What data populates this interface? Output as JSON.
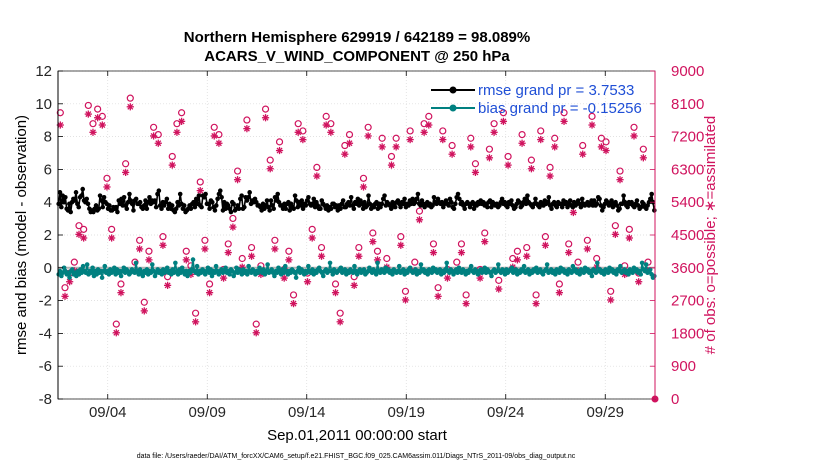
{
  "chart_data": {
    "type": "line",
    "title": [
      "Northern Hemisphere 629919 / 642189 = 98.089%",
      "ACARS_V_WIND_COMPONENT @ 250 hPa"
    ],
    "xlabel": "Sep.01,2011 00:00:00 start",
    "ylabel": "rmse and bias (model - observation)",
    "ylabel_right": "# of obs: o=possible; ∗=assimilated",
    "footer": "data file: /Users/raeder/DAI/ATM_forcXX/CAM6_setup/f.e21.FHIST_BGC.f09_025.CAM6assim.011/Diags_NTrS_2011-09/obs_diag_output.nc",
    "xlim_days": [
      1.5,
      31.5
    ],
    "xticks": [
      4,
      9,
      14,
      19,
      24,
      29
    ],
    "xtick_labels": [
      "09/04",
      "09/09",
      "09/14",
      "09/19",
      "09/24",
      "09/29"
    ],
    "ylim": [
      -8,
      12
    ],
    "yticks": [
      -8,
      -6,
      -4,
      -2,
      0,
      2,
      4,
      6,
      8,
      10,
      12
    ],
    "ylim_right": [
      0,
      9000
    ],
    "yticks_right": [
      0,
      900,
      1800,
      2700,
      3600,
      4500,
      5400,
      6300,
      7200,
      8100,
      9000
    ],
    "colors": {
      "rmse": "#000000",
      "bias": "#008080",
      "obs": "#d0135e",
      "zero": "#b3b3b3"
    },
    "series": [
      {
        "name": "rmse",
        "legend": "rmse grand pr = 3.7533",
        "values": [
          3.9,
          4.6,
          3.7,
          4.4,
          4.0,
          4.3,
          3.6,
          3.5,
          3.9,
          3.4,
          4.0,
          4.2,
          4.1,
          4.6,
          3.9,
          3.7,
          4.3,
          4.4,
          4.8,
          4.1,
          4.0,
          4.2,
          3.9,
          3.6,
          3.4,
          3.5,
          3.4,
          3.6,
          3.8,
          3.5,
          3.6,
          4.4,
          4.1,
          3.7,
          4.3,
          4.0,
          3.9,
          3.6,
          3.8,
          3.5,
          3.5,
          3.7,
          3.6,
          3.7,
          3.4,
          4.1,
          3.9,
          4.2,
          3.8,
          4.3,
          3.8,
          3.6,
          4.0,
          4.5,
          4.1,
          3.9,
          3.5,
          4.1,
          4.2,
          3.9,
          3.9,
          4.0,
          3.7,
          3.6,
          3.8,
          4.1,
          3.6,
          4.0,
          4.3,
          3.9,
          4.1,
          4.0,
          4.1,
          3.7,
          4.5,
          4.7,
          3.8,
          3.6,
          4.0,
          3.8,
          4.0,
          4.2,
          3.6,
          3.9,
          3.6,
          3.8,
          3.5,
          3.4,
          3.6,
          4.0,
          3.8,
          4.5,
          3.9,
          3.6,
          3.8,
          3.4,
          3.5,
          3.6,
          3.8,
          3.6,
          3.9,
          4.0,
          3.7,
          4.2,
          3.9,
          4.4,
          3.8,
          3.7,
          4.4,
          4.3,
          4.5,
          3.9,
          3.9,
          3.6,
          4.1,
          4.0,
          3.7,
          3.5,
          3.8,
          4.2,
          4.5,
          4.7,
          4.3,
          3.5,
          4.0,
          3.6,
          3.9,
          3.8,
          3.6,
          3.4,
          4.0,
          3.9,
          3.5,
          3.6,
          3.8,
          3.6,
          4.2,
          4.4,
          3.6,
          3.7,
          4.3,
          4.1,
          4.3,
          4.6,
          3.9,
          4.1,
          4.0,
          4.2,
          4.0,
          3.8,
          3.8,
          3.7,
          3.5,
          3.9,
          3.6,
          3.8,
          4.1,
          3.7,
          3.5,
          4.1,
          3.8,
          3.6,
          4.3,
          4.1,
          4.5,
          4.0,
          3.8,
          3.8,
          3.6,
          3.9,
          3.6,
          3.9,
          4.0,
          3.5,
          3.9,
          3.7,
          3.6,
          4.4,
          4.1,
          3.7,
          4.0,
          3.8,
          4.1,
          3.6,
          3.9,
          3.8,
          4.1,
          4.3,
          3.9,
          3.8,
          3.9,
          4.2,
          3.7,
          4.0,
          3.8,
          3.6,
          3.6,
          4.1,
          3.9,
          3.8,
          3.6,
          3.8,
          3.5,
          3.7,
          3.6,
          3.9,
          3.9,
          3.7,
          3.8,
          3.5,
          3.8,
          3.6,
          3.9,
          4.1,
          3.7,
          3.7,
          3.9,
          4.0,
          3.8,
          4.3,
          3.8,
          3.6,
          4.0,
          3.9,
          4.2,
          3.8,
          4.1,
          3.9,
          3.6,
          4.0,
          3.7,
          3.8,
          4.4,
          3.9,
          3.6,
          3.8,
          3.7,
          3.9,
          4.0,
          3.6,
          3.9,
          3.7,
          3.9,
          4.2,
          4.4,
          3.8,
          4.0,
          3.9,
          3.8,
          3.6,
          4.0,
          3.8,
          3.7,
          4.0,
          4.1,
          3.9,
          3.7,
          4.0,
          3.9,
          4.2,
          3.7,
          3.9,
          3.8,
          4.1,
          3.9,
          4.2,
          3.9,
          4.0,
          4.2,
          4.5,
          3.9,
          3.8,
          4.1,
          3.9,
          3.7,
          3.9,
          4.0,
          3.8,
          3.9,
          3.7,
          3.8,
          4.3,
          4.0,
          3.9,
          4.2,
          4.0,
          3.9,
          4.0,
          3.7,
          3.9,
          4.1,
          3.9,
          3.8,
          4.2,
          4.0,
          3.7,
          3.6,
          3.9,
          4.3,
          4.5,
          4.2,
          3.9,
          4.0,
          3.8,
          3.6,
          3.9,
          4.0,
          3.9,
          3.7,
          3.9,
          4.0,
          3.6,
          3.9,
          3.8,
          4.0,
          3.9,
          4.1,
          3.9,
          4.0,
          3.8,
          3.9,
          3.7,
          4.0,
          4.1,
          3.7,
          4.0,
          3.9,
          3.8,
          3.9,
          3.7,
          3.8,
          4.0,
          4.2,
          3.9,
          4.0,
          3.8,
          3.7,
          4.0,
          3.9,
          4.1,
          3.8,
          3.6,
          3.7,
          3.9,
          4.1,
          4.0,
          3.7,
          3.8,
          4.0,
          4.2,
          3.9,
          4.4,
          4.0,
          3.9,
          3.8,
          3.7,
          3.9,
          4.2,
          3.9,
          3.8,
          3.7,
          4.0,
          3.9,
          3.8,
          4.1,
          3.9,
          4.0,
          4.3,
          3.8,
          3.6,
          3.9,
          4.0,
          3.8,
          3.7,
          4.0,
          3.9,
          3.9,
          3.7,
          4.1,
          3.9,
          4.0,
          3.7,
          3.9,
          4.1,
          3.8,
          3.7,
          4.0,
          3.8,
          3.9,
          4.1,
          3.9,
          3.7,
          4.2,
          3.9,
          3.8,
          3.9,
          4.0,
          3.8,
          3.9,
          4.1,
          3.8,
          4.1,
          3.8,
          3.9,
          4.3,
          4.2,
          3.8,
          3.5,
          3.7,
          3.9,
          4.1,
          4.0,
          3.8,
          3.9,
          4.1,
          3.7,
          3.9,
          4.0,
          3.8,
          3.5,
          3.6,
          3.9,
          3.9,
          4.4,
          4.0,
          3.8,
          3.7,
          4.0,
          3.9,
          4.0,
          3.8,
          3.7,
          3.9,
          4.1,
          3.8,
          3.6,
          3.7,
          4.0,
          3.9,
          3.7,
          3.6,
          3.8,
          4.0,
          4.2,
          4.5,
          4.0,
          3.5
        ]
      },
      {
        "name": "bias",
        "legend": "bias grand pr = -0.15256",
        "values": [
          -0.4,
          -0.2,
          -0.5,
          -0.3,
          0.0,
          -0.2,
          -0.4,
          -0.3,
          -0.6,
          -0.2,
          -0.1,
          -0.4,
          -0.3,
          -0.5,
          -0.2,
          -0.4,
          -0.1,
          -0.3,
          0.1,
          -0.2,
          -0.3,
          0.2,
          -0.4,
          -0.2,
          -0.3,
          0.0,
          -0.5,
          -0.2,
          -0.4,
          -0.1,
          -0.3,
          -0.2,
          -0.6,
          -0.2,
          0.1,
          -0.3,
          -0.2,
          -0.4,
          -0.1,
          -0.3,
          -0.2,
          0.0,
          -0.4,
          -0.1,
          -0.3,
          -0.2,
          -0.5,
          -0.2,
          0.0,
          -0.3,
          -0.1,
          -0.2,
          -0.4,
          -0.3,
          -0.1,
          -0.2,
          -0.3,
          0.3,
          -0.2,
          -0.4,
          -0.1,
          -0.3,
          -0.5,
          -0.2,
          -0.3,
          -0.1,
          -0.4,
          -0.2,
          -0.3,
          0.2,
          -0.2,
          -0.5,
          -0.3,
          -0.1,
          -0.3,
          -0.2,
          -0.4,
          -0.1,
          -0.3,
          -0.2,
          0.0,
          -0.3,
          -0.2,
          -0.4,
          -0.1,
          -0.3,
          0.3,
          -0.2,
          -0.4,
          -0.1,
          -0.3,
          0.0,
          -0.2,
          -0.4,
          -0.2,
          -0.5,
          -0.2,
          -0.3,
          -0.1,
          0.5,
          -0.2,
          -0.3,
          0.1,
          -0.4,
          -0.2,
          -0.3,
          -0.1,
          -0.2,
          -0.4,
          -0.2,
          0.0,
          -0.3,
          -0.1,
          -0.5,
          -0.2,
          -0.3,
          0.1,
          -0.2,
          -0.4,
          -0.2,
          -0.1,
          -0.3,
          -0.2,
          0.0,
          -0.3,
          -0.2,
          -0.4,
          -0.1,
          -0.2,
          -0.5,
          -0.3,
          0.0,
          -0.3,
          -0.1,
          -0.2,
          -0.4,
          -0.1,
          -0.3,
          -0.2,
          -0.4,
          0.1,
          -0.2,
          -0.3,
          -0.1,
          -0.2,
          -0.4,
          -0.2,
          -0.3,
          0.0,
          -0.2,
          -0.3,
          -0.1,
          -0.4,
          -0.2,
          0.2,
          -0.3,
          -0.2,
          -0.1,
          -0.3,
          -0.5,
          -0.2,
          -0.3,
          0.0,
          -0.2,
          -0.4,
          -0.1,
          -0.3,
          0.1,
          -0.2,
          -0.4,
          -0.2,
          -0.3,
          -0.1,
          -0.2,
          -0.3,
          -0.6,
          -0.2,
          0.0,
          -0.3,
          -0.1,
          -0.2,
          -0.4,
          -0.2,
          -0.3,
          0.1,
          -0.2,
          -0.3,
          -0.1,
          -0.4,
          -0.2,
          -0.3,
          -0.1,
          0.0,
          -0.2,
          -0.3,
          -0.5,
          -0.2,
          -0.1,
          -0.3,
          -0.2,
          0.3,
          -0.2,
          -0.4,
          -0.1,
          -0.2,
          -0.3,
          -0.2,
          -0.1,
          0.0,
          -0.3,
          -0.2,
          -0.1,
          -0.4,
          -0.2,
          -0.3,
          -0.1,
          -0.2,
          -0.3,
          0.1,
          -0.2,
          -0.4,
          -0.2,
          -0.1,
          -0.3,
          -0.2,
          -0.1,
          -0.4,
          -0.3,
          -0.2,
          0.0,
          -0.2,
          -0.3,
          -0.1,
          -0.2,
          -0.4,
          0.3,
          -0.2,
          -0.3,
          -0.1,
          -0.2,
          -0.3,
          0.0,
          -0.2,
          -0.1,
          -0.3,
          -0.2,
          -0.4,
          -0.1,
          -0.2,
          -0.3,
          -0.2,
          0.1,
          -0.3,
          -0.2,
          -0.1,
          -0.4,
          -0.2,
          -0.3,
          -0.1,
          0.0,
          -0.2,
          -0.3,
          -0.2,
          -0.1,
          -0.4,
          -0.2,
          -0.3,
          0.2,
          -0.2,
          -0.1,
          -0.3,
          -0.2,
          -0.4,
          -0.1,
          -0.2,
          -0.3,
          0.0,
          -0.2,
          -0.1,
          -0.3,
          -0.2,
          -0.1,
          -0.4,
          -0.2,
          -0.3,
          -0.1,
          0.3,
          -0.2,
          -0.3,
          -0.1,
          -0.2,
          -0.4,
          -0.2,
          -0.1,
          -0.3,
          0.0,
          -0.2,
          -0.3,
          -0.1,
          -0.2,
          -0.4,
          -0.2,
          -0.3,
          -0.1,
          0.1,
          -0.2,
          -0.3,
          -0.1,
          -0.2,
          -0.4,
          -0.2,
          -0.1,
          -0.3,
          -0.2,
          0.0,
          -0.3,
          -0.1,
          -0.2,
          -0.3,
          -0.5,
          -0.2,
          -0.1,
          -0.3,
          -0.2,
          0.2,
          -0.2,
          -0.3,
          -0.1,
          -0.2,
          -0.4,
          -0.1,
          -0.3,
          -0.2,
          -0.1,
          0.0,
          -0.3,
          -0.2,
          -0.1,
          -0.4,
          -0.2,
          -0.3,
          -0.1,
          -0.2,
          0.1,
          -0.3,
          -0.2,
          -0.1,
          -0.4,
          -0.2,
          -0.3,
          -0.1,
          -0.2,
          0.0,
          -0.3,
          -0.2,
          -0.1,
          -0.3,
          -0.4,
          -0.2,
          -0.1,
          0.2,
          -0.3,
          -0.2,
          -0.1,
          -0.3,
          -0.2,
          -0.4,
          -0.1,
          -0.2,
          -0.3,
          0.0,
          -0.2,
          -0.1,
          -0.3,
          -0.2,
          -0.4,
          -0.1,
          -0.2,
          -0.3,
          0.1,
          -0.2,
          -0.1,
          -0.3,
          -0.2,
          -0.4,
          -0.1,
          -0.2,
          -0.3,
          0.0,
          -0.2,
          -0.1,
          -0.3,
          -0.2,
          -0.5,
          -0.1,
          -0.2,
          -0.3,
          0.3,
          -0.2,
          -0.1,
          -0.3,
          -0.2,
          -0.4,
          -0.1,
          -0.2,
          -0.3,
          0.0,
          -0.2,
          -0.1,
          -0.3,
          -0.2,
          -0.4,
          -0.1,
          -0.2,
          0.1,
          -0.3,
          -0.2,
          -0.1,
          -0.3,
          -0.2,
          -0.4,
          -0.1,
          -0.2,
          -0.3,
          0.0,
          -0.2,
          -0.1,
          -0.3,
          -0.2,
          -0.4,
          0.3,
          -0.1,
          -0.2,
          0.2,
          -0.3,
          -0.2,
          -0.1,
          -0.4,
          -0.6,
          -0.5
        ]
      },
      {
        "name": "obs_possible",
        "marker": "o",
        "values": [
          7800,
          3000,
          3400,
          3700,
          4700,
          4600,
          8000,
          7500,
          7900,
          7700,
          6000,
          4600,
          2000,
          3100,
          6400,
          8200,
          3700,
          4300,
          2600,
          4000,
          7400,
          7200,
          4400,
          3300,
          6600,
          7500,
          7800,
          4000,
          3600,
          2300,
          5900,
          4300,
          3100,
          7400,
          7200,
          3500,
          4200,
          4900,
          6200,
          3800,
          7600,
          4100,
          2000,
          3600,
          7900,
          6500,
          4300,
          7000,
          3500,
          4000,
          2800,
          7500,
          7300,
          3400,
          4600,
          6300,
          4100,
          7700,
          7500,
          3100,
          2300,
          6900,
          7200,
          3300,
          4100,
          6000,
          7400,
          4500,
          4000,
          7100,
          3800,
          6600,
          7100,
          4400,
          2900,
          7300,
          3700,
          5100,
          7500,
          7700,
          4200,
          3000,
          7300,
          3500,
          6900,
          3700,
          4200,
          2800,
          7100,
          6400,
          3500,
          4500,
          6800,
          7500,
          3200,
          7800,
          6600,
          3800,
          4000,
          7200,
          4100,
          6500,
          2800,
          7300,
          4400,
          6300,
          7100,
          3100,
          7800,
          4200,
          5300,
          3700,
          6900,
          4300,
          7700,
          3800,
          7100,
          7000,
          2900,
          4700,
          6200,
          3600,
          4600,
          7400,
          3400,
          6800,
          3700,
          0
        ]
      },
      {
        "name": "obs_assimilated",
        "marker": "*",
        "values": [
          7600,
          2900,
          3300,
          3600,
          4600,
          4500,
          7900,
          7400,
          7800,
          7600,
          5900,
          4500,
          1900,
          3000,
          6300,
          8100,
          3600,
          4200,
          2500,
          3900,
          7300,
          7100,
          4300,
          3200,
          6500,
          7400,
          7700,
          3900,
          3500,
          2200,
          5800,
          4200,
          3000,
          7300,
          7100,
          3400,
          4100,
          4800,
          6100,
          3700,
          7500,
          4000,
          1900,
          3500,
          7800,
          6400,
          4200,
          6900,
          3400,
          3900,
          2700,
          7400,
          7200,
          3300,
          4500,
          6200,
          4000,
          7600,
          7400,
          3000,
          2200,
          6800,
          7100,
          3200,
          4000,
          5900,
          7300,
          4400,
          3900,
          7000,
          3700,
          6500,
          7000,
          4300,
          2800,
          7200,
          3600,
          5000,
          7400,
          7600,
          4100,
          2900,
          7200,
          3400,
          6800,
          3600,
          4100,
          2700,
          7000,
          6300,
          3400,
          4400,
          6700,
          7400,
          3100,
          7700,
          6500,
          3700,
          3900,
          7100,
          4000,
          6400,
          2700,
          7200,
          4300,
          6200,
          7000,
          3000,
          7700,
          4100,
          5200,
          3600,
          6800,
          4200,
          7600,
          3700,
          7000,
          6900,
          2800,
          4600,
          6100,
          3500,
          4500,
          7300,
          3300,
          6700,
          3600,
          0
        ]
      }
    ]
  }
}
